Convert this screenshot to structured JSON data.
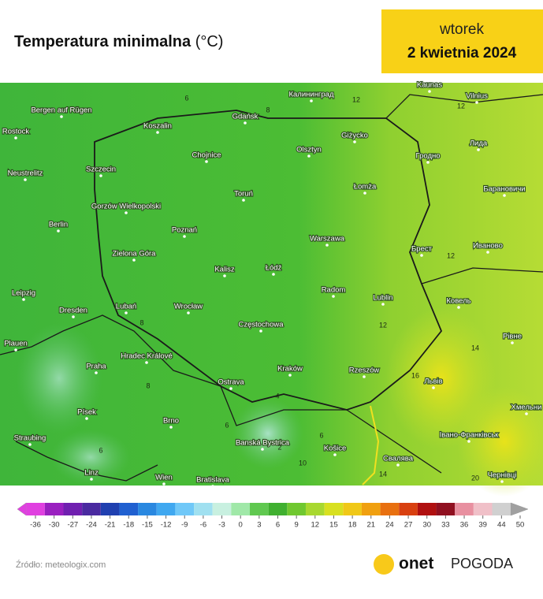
{
  "header": {
    "title": "Temperatura minimalna",
    "unit": "(°C)",
    "day": "wtorek",
    "date": "2 kwietnia 2024"
  },
  "map": {
    "cities": [
      "Калининград",
      "Vilnius",
      "Kaunas",
      "Gdańsk",
      "Koszalin",
      "Bergen auf Rügen",
      "Rostock",
      "Лида",
      "Гродно",
      "Giżycko",
      "Olsztyn",
      "Chojnice",
      "Szczecin",
      "Neustrelitz",
      "Łomża",
      "Toruń",
      "Барановичи",
      "Gorzów Wielkopolski",
      "Berlin",
      "Poznań",
      "Брест",
      "Иваново",
      "Zielona Góra",
      "Warszawa",
      "Łódź",
      "Kalisz",
      "Radom",
      "Lublin",
      "Ковель",
      "Leipzig",
      "Dresden",
      "Lubań",
      "Wrocław",
      "Częstochowa",
      "Plauen",
      "Hradec Králové",
      "Praha",
      "Kraków",
      "Rzeszów",
      "Львів",
      "Рівне",
      "Ostrava",
      "Brno",
      "Písek",
      "Straubing",
      "Banská Bystrica",
      "Košice",
      "Івано-Франківськ",
      "Хмельни",
      "Свалява",
      "Linz",
      "Wien",
      "Bratislava",
      "Чернівці"
    ],
    "contours": [
      "6",
      "8",
      "12",
      "12",
      "12",
      "12",
      "8",
      "8",
      "6",
      "6",
      "4",
      "2",
      "6",
      "16",
      "14",
      "14",
      "20",
      "10"
    ]
  },
  "legend": {
    "ticks": [
      -36,
      -30,
      -27,
      -24,
      -21,
      -18,
      -15,
      -12,
      -9,
      -6,
      -3,
      0,
      3,
      6,
      9,
      12,
      15,
      18,
      21,
      24,
      27,
      30,
      33,
      36,
      39,
      44,
      50
    ]
  },
  "footer": {
    "source": "Źródło: meteologix.com",
    "brand": "onet",
    "product": "POGODA"
  }
}
